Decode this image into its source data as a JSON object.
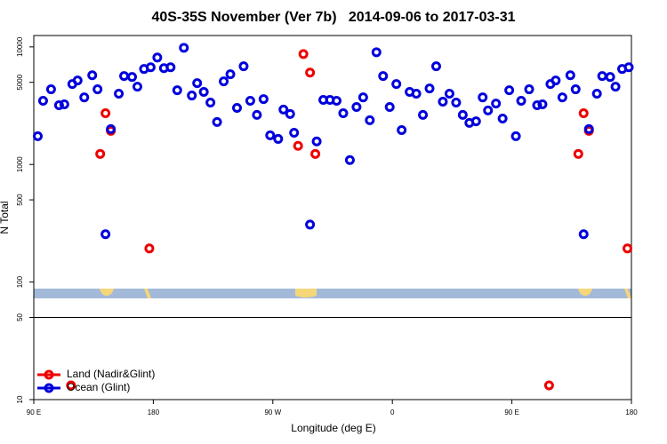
{
  "chart_data": {
    "type": "scatter",
    "title": "40S-35S November (Ver 7b)   2014-09-06 to 2017-03-31",
    "x_label": "Longitude (deg E)",
    "y_label": "N Total",
    "log_y": true,
    "legend": "lower left",
    "xlim": [
      90,
      540
    ],
    "xticks": [
      {
        "value": 90,
        "label": "90 E"
      },
      180,
      {
        "value": 270,
        "label": "90 W"
      },
      {
        "value": 360,
        "label": "0"
      },
      {
        "value": 450,
        "label": "90 E"
      },
      {
        "value": 540,
        "label": "180"
      }
    ],
    "ylim": [
      10,
      12500
    ],
    "yticks": [
      10,
      50,
      100,
      500,
      1000,
      5000,
      10000
    ],
    "series": [
      {
        "name": "Land (Nadir&Glint)",
        "color": "#ee0000",
        "x": [
          140,
          144,
          148,
          177,
          293,
          298,
          289,
          302,
          118,
          500,
          504,
          508,
          537,
          478
        ],
        "values": [
          1230,
          2730,
          1930,
          193,
          8700,
          6050,
          1440,
          1230,
          13.2,
          1230,
          2730,
          1930,
          193,
          13.2
        ]
      },
      {
        "name": "Ocean (Glint)",
        "color": "#0000dd",
        "x": [
          93,
          97,
          103,
          109,
          113,
          119,
          123,
          128,
          134,
          138,
          144,
          148,
          154,
          158,
          164,
          168,
          173,
          178,
          183,
          188,
          193,
          198,
          203,
          209,
          213,
          218,
          223,
          228,
          233,
          238,
          243,
          248,
          253,
          258,
          263,
          268,
          274,
          278,
          283,
          286,
          298,
          303,
          308,
          313,
          318,
          323,
          328,
          333,
          338,
          343,
          348,
          353,
          358,
          363,
          367,
          373,
          378,
          383,
          388,
          393,
          398,
          403,
          408,
          413,
          418,
          423,
          428,
          432,
          438,
          443,
          448,
          453,
          457,
          463,
          469,
          473,
          479,
          483,
          488,
          494,
          498,
          504,
          508,
          514,
          518,
          524,
          528,
          533,
          538
        ],
        "values": [
          1740,
          3480,
          4360,
          3190,
          3250,
          4830,
          5180,
          3720,
          5740,
          4360,
          255,
          2000,
          4000,
          5650,
          5550,
          4590,
          6490,
          6710,
          8120,
          6600,
          6710,
          4280,
          9830,
          3860,
          4920,
          4140,
          3360,
          2300,
          5090,
          5850,
          3030,
          6840,
          3480,
          2640,
          3600,
          1770,
          1650,
          2930,
          2690,
          1860,
          308,
          1570,
          3540,
          3540,
          3480,
          2730,
          1090,
          3080,
          3720,
          2380,
          9010,
          5650,
          3080,
          4830,
          1960,
          4140,
          4000,
          2640,
          4430,
          6840,
          3420,
          4000,
          3360,
          2640,
          2260,
          2330,
          3720,
          2880,
          3300,
          2460,
          4280,
          1740,
          3480,
          4360,
          3190,
          3250,
          4830,
          5180,
          3720,
          5740,
          4360,
          255,
          2000,
          4000,
          5650,
          5550,
          4590,
          6490,
          6710
        ]
      }
    ]
  }
}
